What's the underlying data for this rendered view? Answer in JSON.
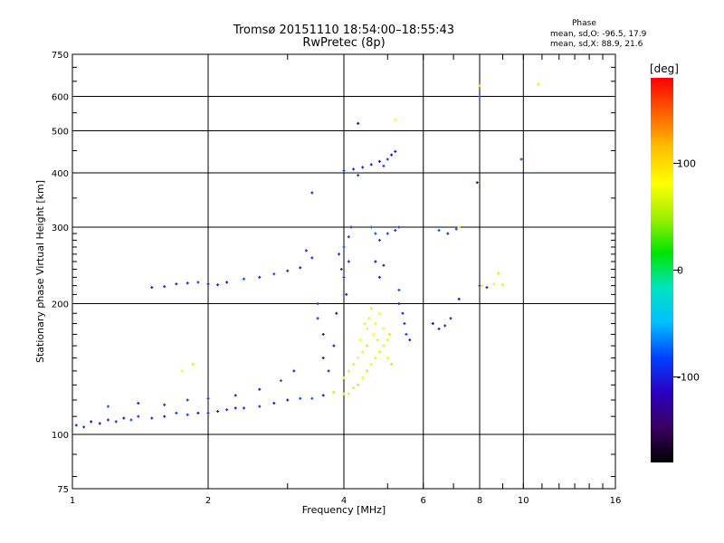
{
  "header": {
    "title_line1": "Tromsø 20151110 18:54:00–18:55:43",
    "title_line2": "RwPretec (8p)"
  },
  "phase_box": {
    "title": "Phase",
    "o_line": "mean, sd,O: -96.5, 17.9",
    "x_line": "mean, sd,X:  88.9, 21.6"
  },
  "colorbar": {
    "unit_label": "[deg]",
    "ticks": [
      {
        "value": 100,
        "label": "100"
      },
      {
        "value": 0,
        "label": "0"
      },
      {
        "value": -100,
        "label": "-100"
      }
    ],
    "range": [
      -180,
      180
    ],
    "stops": [
      "#000000",
      "#3a0060",
      "#2b00c0",
      "#0040ff",
      "#00bfff",
      "#00e4c0",
      "#00e400",
      "#a0f000",
      "#ffff00",
      "#ffc000",
      "#ff6000",
      "#ff0000"
    ]
  },
  "chart_data": {
    "type": "scatter",
    "title": "Tromsø 20151110 18:54:00–18:55:43",
    "subtitle": "RwPretec (8p)",
    "xlabel": "Frequency [MHz]",
    "ylabel": "Stationary phase Virtual Height [km]",
    "x_scale": "log",
    "y_scale": "log",
    "xlim": [
      1,
      16
    ],
    "ylim": [
      75,
      750
    ],
    "grid": true,
    "x_ticks": [
      1,
      2,
      4,
      6,
      8,
      10,
      16
    ],
    "x_tick_labels": [
      "1",
      "2",
      "4",
      "6",
      "8",
      "10",
      "16"
    ],
    "x_gridlines": [
      2,
      4,
      6,
      8,
      10
    ],
    "y_ticks": [
      75,
      100,
      200,
      300,
      400,
      500,
      600,
      750
    ],
    "y_tick_labels": [
      "75",
      "100",
      "200",
      "300",
      "400",
      "500",
      "600",
      "750"
    ],
    "y_gridlines": [
      100,
      200,
      300,
      400,
      500,
      600
    ],
    "color_scale": "phase [deg]",
    "series": [
      {
        "name": "O-mode",
        "phase": -96.5,
        "points": [
          [
            1.02,
            105
          ],
          [
            1.06,
            104
          ],
          [
            1.1,
            107
          ],
          [
            1.15,
            106
          ],
          [
            1.2,
            108
          ],
          [
            1.25,
            107
          ],
          [
            1.3,
            109
          ],
          [
            1.35,
            108
          ],
          [
            1.4,
            110
          ],
          [
            1.5,
            109
          ],
          [
            1.6,
            110
          ],
          [
            1.7,
            112
          ],
          [
            1.8,
            111
          ],
          [
            1.9,
            112
          ],
          [
            2.0,
            112
          ],
          [
            2.1,
            113
          ],
          [
            2.2,
            114
          ],
          [
            2.3,
            115
          ],
          [
            2.4,
            115
          ],
          [
            2.6,
            116
          ],
          [
            2.8,
            118
          ],
          [
            3.0,
            120
          ],
          [
            3.2,
            121
          ],
          [
            3.4,
            121
          ],
          [
            3.6,
            123
          ],
          [
            3.8,
            125
          ],
          [
            1.2,
            116
          ],
          [
            1.4,
            118
          ],
          [
            1.6,
            117
          ],
          [
            1.8,
            120
          ],
          [
            2.0,
            121
          ],
          [
            2.3,
            123
          ],
          [
            2.6,
            127
          ],
          [
            2.9,
            133
          ],
          [
            3.1,
            140
          ],
          [
            1.5,
            218
          ],
          [
            1.6,
            219
          ],
          [
            1.7,
            222
          ],
          [
            1.8,
            223
          ],
          [
            1.9,
            224
          ],
          [
            2.0,
            222
          ],
          [
            2.1,
            221
          ],
          [
            2.2,
            224
          ],
          [
            2.4,
            228
          ],
          [
            2.6,
            230
          ],
          [
            2.8,
            234
          ],
          [
            3.0,
            238
          ],
          [
            3.2,
            242
          ],
          [
            3.3,
            265
          ],
          [
            3.4,
            255
          ],
          [
            3.5,
            200
          ],
          [
            3.5,
            185
          ],
          [
            3.6,
            170
          ],
          [
            3.6,
            150
          ],
          [
            3.7,
            140
          ],
          [
            3.8,
            160
          ],
          [
            3.85,
            190
          ],
          [
            3.9,
            260
          ],
          [
            3.95,
            240
          ],
          [
            4.0,
            230
          ],
          [
            4.0,
            270
          ],
          [
            4.05,
            210
          ],
          [
            4.1,
            250
          ],
          [
            4.1,
            285
          ],
          [
            4.15,
            300
          ],
          [
            4.0,
            405
          ],
          [
            4.2,
            408
          ],
          [
            4.4,
            412
          ],
          [
            4.6,
            418
          ],
          [
            4.8,
            425
          ],
          [
            5.0,
            430
          ],
          [
            5.1,
            440
          ],
          [
            5.2,
            448
          ],
          [
            4.3,
            395
          ],
          [
            4.9,
            415
          ],
          [
            4.6,
            300
          ],
          [
            4.7,
            290
          ],
          [
            4.8,
            280
          ],
          [
            5.0,
            290
          ],
          [
            5.2,
            295
          ],
          [
            5.3,
            300
          ],
          [
            4.7,
            250
          ],
          [
            4.8,
            230
          ],
          [
            4.9,
            245
          ],
          [
            5.3,
            200
          ],
          [
            5.4,
            190
          ],
          [
            5.45,
            180
          ],
          [
            5.5,
            170
          ],
          [
            5.6,
            165
          ],
          [
            5.3,
            215
          ],
          [
            6.3,
            180
          ],
          [
            6.5,
            175
          ],
          [
            6.7,
            178
          ],
          [
            6.9,
            185
          ],
          [
            7.2,
            205
          ],
          [
            6.5,
            295
          ],
          [
            6.8,
            290
          ],
          [
            7.1,
            297
          ],
          [
            8.0,
            220
          ],
          [
            8.3,
            218
          ],
          [
            7.9,
            380
          ],
          [
            8.0,
            600
          ],
          [
            9.9,
            430
          ],
          [
            3.4,
            360
          ],
          [
            4.3,
            520
          ]
        ]
      },
      {
        "name": "X-mode",
        "phase": 88.9,
        "points": [
          [
            3.8,
            125
          ],
          [
            4.0,
            124
          ],
          [
            4.1,
            124
          ],
          [
            4.2,
            128
          ],
          [
            4.3,
            130
          ],
          [
            4.4,
            135
          ],
          [
            4.5,
            140
          ],
          [
            4.6,
            145
          ],
          [
            4.7,
            150
          ],
          [
            4.8,
            155
          ],
          [
            4.9,
            160
          ],
          [
            5.0,
            165
          ],
          [
            5.05,
            170
          ],
          [
            4.5,
            160
          ],
          [
            4.5,
            175
          ],
          [
            4.55,
            185
          ],
          [
            4.6,
            195
          ],
          [
            4.65,
            170
          ],
          [
            4.7,
            180
          ],
          [
            4.75,
            165
          ],
          [
            4.8,
            190
          ],
          [
            4.9,
            175
          ],
          [
            5.0,
            150
          ],
          [
            5.1,
            145
          ],
          [
            4.4,
            155
          ],
          [
            4.3,
            150
          ],
          [
            4.2,
            145
          ],
          [
            4.1,
            140
          ],
          [
            4.0,
            135
          ],
          [
            4.35,
            165
          ],
          [
            4.45,
            180
          ],
          [
            8.1,
            220
          ],
          [
            8.6,
            222
          ],
          [
            9.0,
            221
          ],
          [
            8.8,
            235
          ],
          [
            1.75,
            140
          ],
          [
            1.85,
            145
          ],
          [
            5.2,
            530
          ],
          [
            8.0,
            635
          ],
          [
            10.8,
            640
          ],
          [
            7.2,
            300
          ]
        ]
      }
    ]
  }
}
